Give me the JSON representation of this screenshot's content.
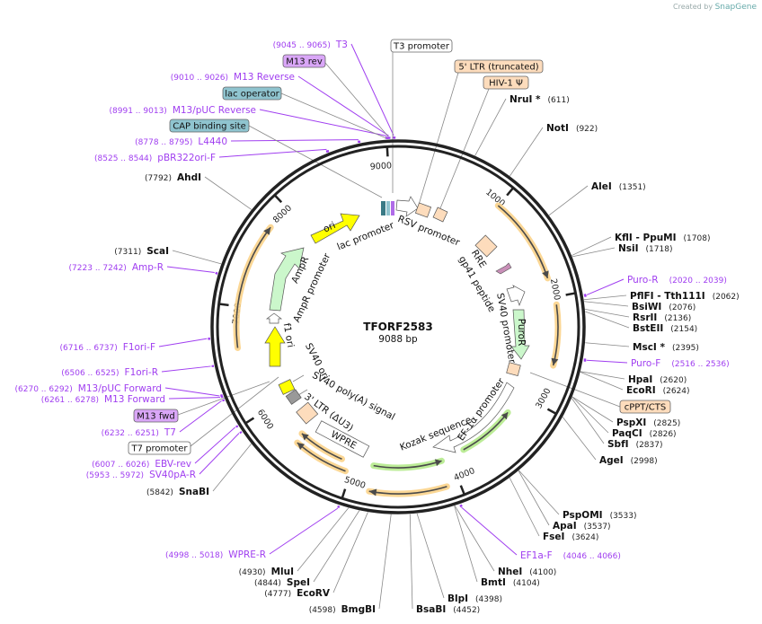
{
  "credit": {
    "prefix": "Created by",
    "brand": "SnapGene"
  },
  "plasmid": {
    "name": "TFORF2583",
    "length_label": "9088 bp",
    "length": 9088
  },
  "ticks": [
    "1000",
    "2000",
    "3000",
    "4000",
    "5000",
    "6000",
    "7000",
    "8000",
    "9000"
  ],
  "enzymes": [
    {
      "name": "NruI *",
      "site": 611
    },
    {
      "name": "NotI",
      "site": 922
    },
    {
      "name": "AleI",
      "site": 1351
    },
    {
      "name": "KflI  - PpuMI",
      "site": 1708
    },
    {
      "name": "NsiI",
      "site": 1718
    },
    {
      "name": "PflFI  - Tth111I",
      "site": 2062
    },
    {
      "name": "BsiWI",
      "site": 2076
    },
    {
      "name": "RsrII",
      "site": 2136
    },
    {
      "name": "BstEII",
      "site": 2154
    },
    {
      "name": "MscI *",
      "site": 2395
    },
    {
      "name": "HpaI",
      "site": 2620
    },
    {
      "name": "EcoRI",
      "site": 2624
    },
    {
      "name": "PspXI",
      "site": 2825
    },
    {
      "name": "PaqCI",
      "site": 2826
    },
    {
      "name": "SbfI",
      "site": 2837
    },
    {
      "name": "AgeI",
      "site": 2998
    },
    {
      "name": "PspOMI",
      "site": 3533
    },
    {
      "name": "ApaI",
      "site": 3537
    },
    {
      "name": "FseI",
      "site": 3624
    },
    {
      "name": "NheI",
      "site": 4100
    },
    {
      "name": "BmtI",
      "site": 4104
    },
    {
      "name": "BlpI",
      "site": 4398
    },
    {
      "name": "BsaBI",
      "site": 4452
    },
    {
      "name": "BmgBI",
      "site": 4598
    },
    {
      "name": "EcoRV",
      "site": 4777
    },
    {
      "name": "SpeI",
      "site": 4844
    },
    {
      "name": "MluI",
      "site": 4930
    },
    {
      "name": "SnaBI",
      "site": 5842
    },
    {
      "name": "ScaI",
      "site": 7311
    },
    {
      "name": "AhdI",
      "site": 7792
    }
  ],
  "primers": [
    {
      "name": "Puro-R",
      "range": "2020 .. 2039"
    },
    {
      "name": "Puro-F",
      "range": "2516 .. 2536"
    },
    {
      "name": "EF1a-F",
      "range": "4046 .. 4066"
    },
    {
      "name": "WPRE-R",
      "range": "4998 .. 5018"
    },
    {
      "name": "SV40pA-R",
      "range": "5953 .. 5972"
    },
    {
      "name": "EBV-rev",
      "range": "6007 .. 6026"
    },
    {
      "name": "T7",
      "range": "6232 .. 6251"
    },
    {
      "name": "M13 Forward",
      "range": "6261 .. 6278"
    },
    {
      "name": "M13/pUC Forward",
      "range": "6270 .. 6292"
    },
    {
      "name": "F1ori-R",
      "range": "6506 .. 6525"
    },
    {
      "name": "F1ori-F",
      "range": "6716 .. 6737"
    },
    {
      "name": "Amp-R",
      "range": "7223 .. 7242"
    },
    {
      "name": "pBR322ori-F",
      "range": "8525 .. 8544"
    },
    {
      "name": "L4440",
      "range": "8778 .. 8795"
    },
    {
      "name": "M13/pUC Reverse",
      "range": "8991 .. 9013"
    },
    {
      "name": "M13 Reverse",
      "range": "9010 .. 9026"
    },
    {
      "name": "T3",
      "range": "9045 .. 9065"
    }
  ],
  "callouts": [
    {
      "label": "T3 promoter",
      "color": "#ffffff"
    },
    {
      "label": "M13 rev",
      "color": "#d9a6f7"
    },
    {
      "label": "lac operator",
      "color": "#8fc4cf"
    },
    {
      "label": "CAP binding site",
      "color": "#8fc4cf"
    },
    {
      "label": "5' LTR (truncated)",
      "color": "#fddcbc"
    },
    {
      "label": "HIV-1 Ψ",
      "color": "#fddcbc"
    },
    {
      "label": "cPPT/CTS",
      "color": "#fddcbc"
    },
    {
      "label": "M13 fwd",
      "color": "#d9a6f7"
    },
    {
      "label": "T7 promoter",
      "color": "#ffffff"
    }
  ],
  "features": {
    "ori": "ori",
    "lac_promoter": "lac promoter",
    "rsv_promoter": "RSV promoter",
    "rre": "RRE",
    "gp41": "gp41 peptide",
    "sv40_promoter": "SV40 promoter",
    "puror": "PuroR",
    "ef1a": "EF-1α promoter",
    "kozak": "Kozak sequence",
    "wpre": "WPRE",
    "ltr3": "3' LTR (ΔU3)",
    "sv40_polya": "SV40 poly(A) signal",
    "sv40_ori": "SV40 ori",
    "f1_ori": "f1 ori",
    "ampr_promoter": "AmpR promoter",
    "ampr": "AmpR"
  },
  "colors": {
    "primer": "#a03ef0",
    "orf": "#fbd38a",
    "orf_green": "#b5ea8c",
    "ring": "#222222"
  }
}
